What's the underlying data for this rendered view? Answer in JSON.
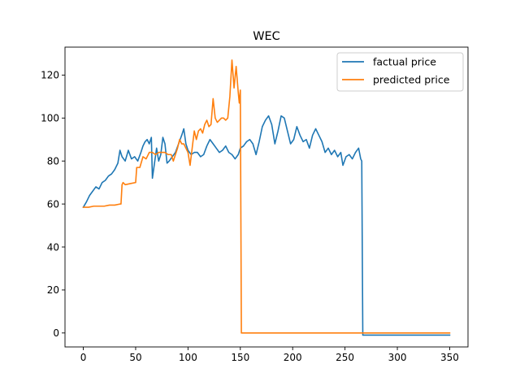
{
  "chart_data": {
    "type": "line",
    "title": "WEC",
    "xlabel": "",
    "ylabel": "",
    "xlim": [
      -17.5,
      367.5
    ],
    "ylim": [
      -6.5,
      133
    ],
    "xticks": [
      0,
      50,
      100,
      150,
      200,
      250,
      300,
      350
    ],
    "yticks": [
      0,
      20,
      40,
      60,
      80,
      100,
      120
    ],
    "grid": false,
    "legend_position": "top-right",
    "series": [
      {
        "name": "factual price",
        "color": "#1f77b4",
        "points": [
          [
            0,
            58.5
          ],
          [
            3,
            61
          ],
          [
            6,
            64
          ],
          [
            9,
            66
          ],
          [
            12,
            68
          ],
          [
            15,
            67
          ],
          [
            18,
            70
          ],
          [
            21,
            71
          ],
          [
            24,
            73
          ],
          [
            27,
            74
          ],
          [
            30,
            76
          ],
          [
            33,
            79
          ],
          [
            35,
            85
          ],
          [
            37,
            82
          ],
          [
            40,
            80
          ],
          [
            43,
            85
          ],
          [
            46,
            81
          ],
          [
            49,
            82
          ],
          [
            52,
            80
          ],
          [
            55,
            84
          ],
          [
            57,
            87
          ],
          [
            59,
            89
          ],
          [
            61,
            90
          ],
          [
            63,
            88
          ],
          [
            65,
            91
          ],
          [
            66,
            72
          ],
          [
            68,
            79
          ],
          [
            70,
            86
          ],
          [
            72,
            80
          ],
          [
            74,
            83
          ],
          [
            76,
            91
          ],
          [
            78,
            88
          ],
          [
            80,
            79
          ],
          [
            82,
            80
          ],
          [
            85,
            82
          ],
          [
            88,
            84
          ],
          [
            91,
            88
          ],
          [
            94,
            92
          ],
          [
            96,
            95
          ],
          [
            98,
            88
          ],
          [
            100,
            85
          ],
          [
            103,
            83
          ],
          [
            106,
            84
          ],
          [
            109,
            84
          ],
          [
            112,
            82
          ],
          [
            115,
            83
          ],
          [
            118,
            87
          ],
          [
            121,
            90
          ],
          [
            124,
            88
          ],
          [
            127,
            86
          ],
          [
            130,
            84
          ],
          [
            133,
            85
          ],
          [
            136,
            87
          ],
          [
            139,
            84
          ],
          [
            142,
            83
          ],
          [
            145,
            81
          ],
          [
            148,
            83
          ],
          [
            150,
            86
          ],
          [
            153,
            87
          ],
          [
            156,
            89
          ],
          [
            159,
            90
          ],
          [
            162,
            88
          ],
          [
            165,
            83
          ],
          [
            168,
            89
          ],
          [
            171,
            96
          ],
          [
            174,
            99
          ],
          [
            177,
            101
          ],
          [
            180,
            97
          ],
          [
            183,
            88
          ],
          [
            186,
            94
          ],
          [
            189,
            101
          ],
          [
            192,
            100
          ],
          [
            195,
            94
          ],
          [
            198,
            88
          ],
          [
            201,
            90
          ],
          [
            204,
            96
          ],
          [
            207,
            92
          ],
          [
            210,
            89
          ],
          [
            213,
            90
          ],
          [
            216,
            86
          ],
          [
            219,
            92
          ],
          [
            222,
            95
          ],
          [
            225,
            92
          ],
          [
            228,
            89
          ],
          [
            231,
            84
          ],
          [
            234,
            86
          ],
          [
            237,
            83
          ],
          [
            240,
            85
          ],
          [
            243,
            82
          ],
          [
            246,
            84
          ],
          [
            248,
            78
          ],
          [
            251,
            82
          ],
          [
            254,
            83
          ],
          [
            257,
            81
          ],
          [
            260,
            84
          ],
          [
            263,
            86
          ],
          [
            265,
            81
          ],
          [
            266,
            80
          ],
          [
            267,
            -1
          ],
          [
            270,
            -1
          ],
          [
            300,
            -1
          ],
          [
            330,
            -1
          ],
          [
            350,
            -1
          ]
        ]
      },
      {
        "name": "predicted price",
        "color": "#ff7f0e",
        "points": [
          [
            0,
            58.5
          ],
          [
            5,
            58.5
          ],
          [
            10,
            59
          ],
          [
            15,
            59
          ],
          [
            20,
            59
          ],
          [
            25,
            59.5
          ],
          [
            30,
            59.5
          ],
          [
            35,
            60
          ],
          [
            36,
            60
          ],
          [
            37,
            69
          ],
          [
            38,
            70
          ],
          [
            40,
            69
          ],
          [
            45,
            69.5
          ],
          [
            50,
            70
          ],
          [
            51,
            77
          ],
          [
            54,
            77
          ],
          [
            57,
            82
          ],
          [
            60,
            81
          ],
          [
            63,
            84
          ],
          [
            66,
            84
          ],
          [
            69,
            83
          ],
          [
            72,
            84
          ],
          [
            75,
            84
          ],
          [
            78,
            84
          ],
          [
            81,
            83
          ],
          [
            84,
            83
          ],
          [
            86,
            80
          ],
          [
            88,
            83
          ],
          [
            90,
            86
          ],
          [
            92,
            90
          ],
          [
            94,
            88
          ],
          [
            96,
            88
          ],
          [
            98,
            86
          ],
          [
            100,
            84
          ],
          [
            102,
            78
          ],
          [
            104,
            86
          ],
          [
            106,
            94
          ],
          [
            108,
            90
          ],
          [
            110,
            94
          ],
          [
            112,
            95
          ],
          [
            114,
            93
          ],
          [
            116,
            97
          ],
          [
            118,
            99
          ],
          [
            120,
            96
          ],
          [
            122,
            97
          ],
          [
            124,
            109
          ],
          [
            126,
            100
          ],
          [
            128,
            98
          ],
          [
            130,
            99
          ],
          [
            132,
            100
          ],
          [
            134,
            100
          ],
          [
            136,
            99
          ],
          [
            138,
            100
          ],
          [
            140,
            110
          ],
          [
            142,
            127
          ],
          [
            144,
            114
          ],
          [
            146,
            124
          ],
          [
            148,
            112
          ],
          [
            149,
            107
          ],
          [
            150,
            113
          ],
          [
            151,
            0
          ],
          [
            152,
            0
          ],
          [
            200,
            0
          ],
          [
            250,
            0
          ],
          [
            300,
            0
          ],
          [
            350,
            0
          ]
        ]
      }
    ]
  }
}
